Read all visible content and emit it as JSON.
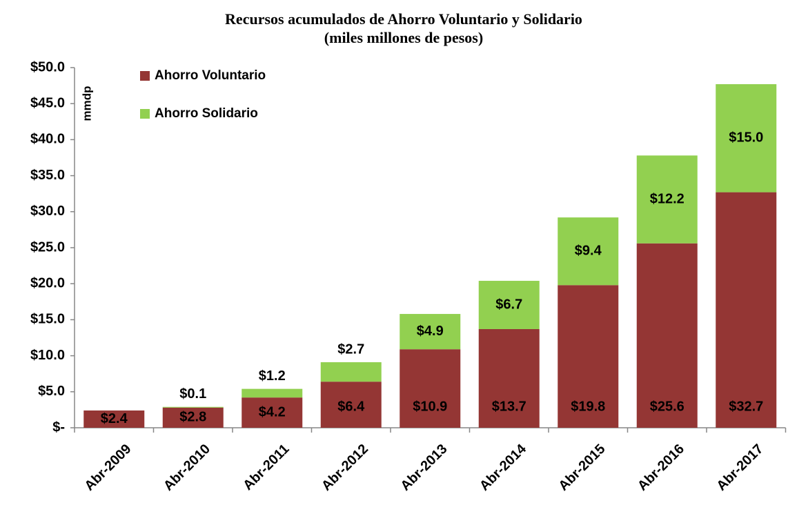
{
  "chart_data": {
    "type": "stacked_bar",
    "title": "Recursos acumulados de Ahorro Voluntario y Solidario",
    "subtitle": "(miles millones de pesos)",
    "y_label": "mmdp",
    "categories": [
      "Abr-2009",
      "Abr-2010",
      "Abr-2011",
      "Abr-2012",
      "Abr-2013",
      "Abr-2014",
      "Abr-2015",
      "Abr-2016",
      "Abr-2017"
    ],
    "series": [
      {
        "name": "Ahorro Voluntario",
        "color": "#943634",
        "values": [
          2.4,
          2.8,
          4.2,
          6.4,
          10.9,
          13.7,
          19.8,
          25.6,
          32.7
        ],
        "value_labels": [
          "$2.4",
          "$2.8",
          "$4.2",
          "$6.4",
          "$10.9",
          "$13.7",
          "$19.8",
          "$25.6",
          "$32.7"
        ]
      },
      {
        "name": "Ahorro Solidario",
        "color": "#92d050",
        "values": [
          null,
          0.1,
          1.2,
          2.7,
          4.9,
          6.7,
          9.4,
          12.2,
          15.0
        ],
        "value_labels": [
          null,
          "$0.1",
          "$1.2",
          "$2.7",
          "$4.9",
          "$6.7",
          "$9.4",
          "$12.2",
          "$15.0"
        ]
      }
    ],
    "ylim": [
      0,
      50
    ],
    "yticks": [
      {
        "value": 0,
        "label": "$-"
      },
      {
        "value": 5,
        "label": "$5.0"
      },
      {
        "value": 10,
        "label": "$10.0"
      },
      {
        "value": 15,
        "label": "$15.0"
      },
      {
        "value": 20,
        "label": "$20.0"
      },
      {
        "value": 25,
        "label": "$25.0"
      },
      {
        "value": 30,
        "label": "$30.0"
      },
      {
        "value": 35,
        "label": "$35.0"
      },
      {
        "value": 40,
        "label": "$40.0"
      },
      {
        "value": 45,
        "label": "$45.0"
      },
      {
        "value": 50,
        "label": "$50.0"
      }
    ],
    "legend": "top-left"
  }
}
